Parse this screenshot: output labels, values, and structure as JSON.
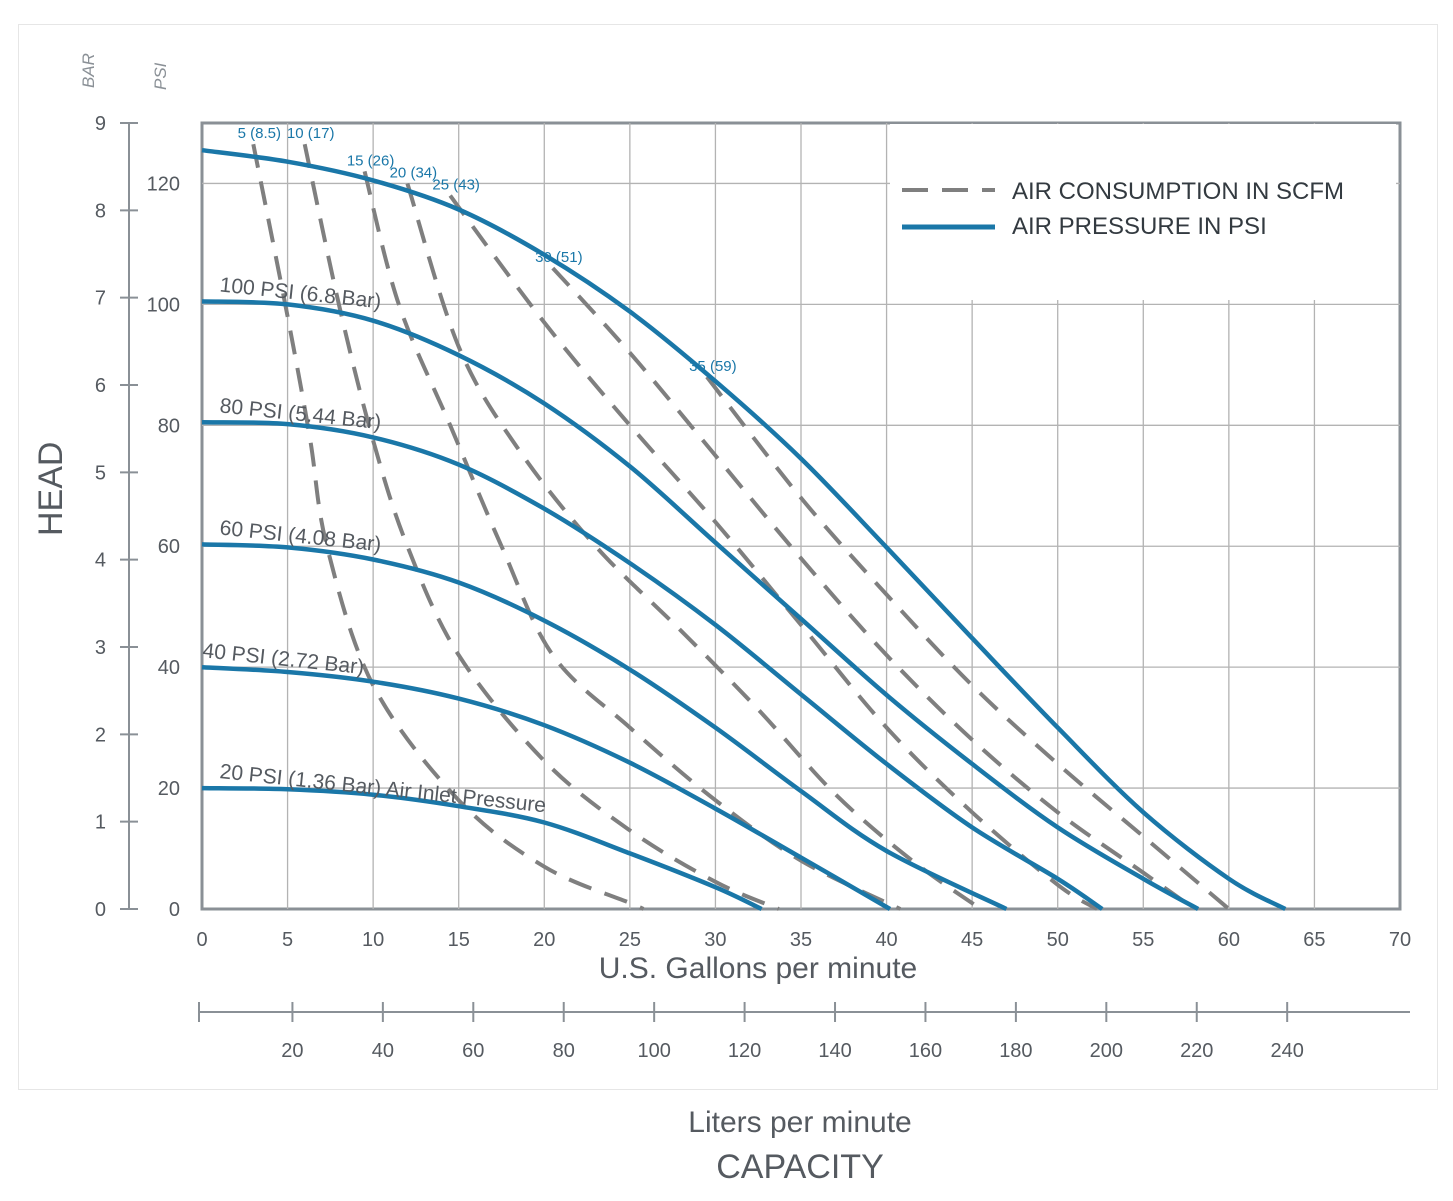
{
  "chart_data": {
    "type": "line",
    "title": "",
    "colors": {
      "pressure": "#1a77a8",
      "consumption": "#7f7f7f",
      "axis": "#8a9096",
      "grid": "#b3b3b3",
      "text": "#555a60"
    },
    "xlabel": "U.S. Gallons per minute",
    "xlabel2": "Liters per minute",
    "capacity_label": "CAPACITY",
    "ylabel": "HEAD",
    "yunit_bar": "BAR",
    "yunit_psi": "PSI",
    "xlim": [
      0,
      70
    ],
    "x_ticks": [
      0,
      5,
      10,
      15,
      20,
      25,
      30,
      35,
      40,
      45,
      50,
      55,
      60,
      65,
      70
    ],
    "ylim_psi": [
      0,
      130
    ],
    "ylim_bar": [
      0,
      9
    ],
    "y_ticks_psi": [
      0,
      20,
      40,
      60,
      80,
      100,
      120
    ],
    "y_ticks_bar": [
      0,
      1,
      2,
      3,
      4,
      5,
      6,
      7,
      8,
      9
    ],
    "lpm_ticks": [
      20,
      40,
      60,
      80,
      100,
      120,
      140,
      160,
      180,
      200,
      220,
      240
    ],
    "legend": {
      "position": "top-right",
      "items": [
        {
          "label": "AIR CONSUMPTION IN SCFM",
          "style": "dashed"
        },
        {
          "label": "AIR PRESSURE IN PSI",
          "style": "solid"
        }
      ]
    },
    "pressure_series": [
      {
        "name": "20 PSI (1.36 Bar) Air Inlet Pressure",
        "label_gpm": 1,
        "points": [
          [
            0,
            20
          ],
          [
            5,
            19.8
          ],
          [
            10,
            18.9
          ],
          [
            15,
            17
          ],
          [
            20,
            14.3
          ],
          [
            25,
            9.2
          ],
          [
            30,
            3.6
          ],
          [
            32.7,
            0
          ]
        ]
      },
      {
        "name": "40 PSI (2.72 Bar)",
        "label_gpm": 0,
        "points": [
          [
            0,
            40
          ],
          [
            5,
            39.2
          ],
          [
            10,
            37.6
          ],
          [
            15,
            34.8
          ],
          [
            20,
            30.4
          ],
          [
            25,
            24.2
          ],
          [
            30,
            16.6
          ],
          [
            35,
            8.5
          ],
          [
            40.2,
            0
          ]
        ]
      },
      {
        "name": "60 PSI (4.08 Bar)",
        "label_gpm": 1,
        "points": [
          [
            0,
            60.3
          ],
          [
            5,
            59.8
          ],
          [
            10,
            57.8
          ],
          [
            15,
            54
          ],
          [
            20,
            47.7
          ],
          [
            25,
            39.6
          ],
          [
            30,
            30
          ],
          [
            35,
            19.5
          ],
          [
            40,
            9.6
          ],
          [
            47,
            0
          ]
        ]
      },
      {
        "name": "80 PSI (5.44 Bar)",
        "label_gpm": 1,
        "points": [
          [
            0,
            80.5
          ],
          [
            5,
            80.2
          ],
          [
            10,
            78
          ],
          [
            15,
            73.5
          ],
          [
            20,
            66.2
          ],
          [
            25,
            57.2
          ],
          [
            30,
            47
          ],
          [
            35,
            35.5
          ],
          [
            40,
            24
          ],
          [
            45,
            13.5
          ],
          [
            50,
            5
          ],
          [
            52.6,
            0
          ]
        ]
      },
      {
        "name": "100 PSI (6.8 Bar)",
        "label_gpm": 1,
        "points": [
          [
            0,
            100.5
          ],
          [
            5,
            100
          ],
          [
            10,
            97.3
          ],
          [
            15,
            91.6
          ],
          [
            20,
            83.6
          ],
          [
            25,
            73.2
          ],
          [
            30,
            60.6
          ],
          [
            35,
            48
          ],
          [
            40,
            35.4
          ],
          [
            45,
            24
          ],
          [
            50,
            13.5
          ],
          [
            55,
            5
          ],
          [
            58.2,
            0
          ]
        ]
      },
      {
        "name": "",
        "label_gpm": 0,
        "points": [
          [
            0,
            125.5
          ],
          [
            5,
            123.6
          ],
          [
            10,
            120.5
          ],
          [
            15,
            115.7
          ],
          [
            20,
            108.2
          ],
          [
            25,
            98.8
          ],
          [
            30,
            87.3
          ],
          [
            35,
            74.5
          ],
          [
            40,
            59.8
          ],
          [
            45,
            44.8
          ],
          [
            50,
            30
          ],
          [
            55,
            16
          ],
          [
            60,
            5
          ],
          [
            63.3,
            0
          ]
        ]
      }
    ],
    "consumption_series": [
      {
        "name": "5 (8.5)",
        "points": [
          [
            3,
            126.5
          ],
          [
            5,
            98
          ],
          [
            6.3,
            78
          ],
          [
            7.3,
            60
          ],
          [
            10,
            37
          ],
          [
            15,
            18
          ],
          [
            20,
            7
          ],
          [
            25,
            1
          ],
          [
            25.8,
            0
          ]
        ]
      },
      {
        "name": "10 (17)",
        "points": [
          [
            6,
            126.5
          ],
          [
            8,
            100
          ],
          [
            10,
            77.5
          ],
          [
            12,
            60
          ],
          [
            15,
            42
          ],
          [
            20,
            24.5
          ],
          [
            25,
            13
          ],
          [
            30,
            4.5
          ],
          [
            33.7,
            0
          ]
        ]
      },
      {
        "name": "15 (26)",
        "points": [
          [
            9.5,
            122
          ],
          [
            11.5,
            100
          ],
          [
            14.5,
            80
          ],
          [
            17.5,
            60
          ],
          [
            20.5,
            42
          ],
          [
            25,
            30
          ],
          [
            30,
            18
          ],
          [
            35,
            8
          ],
          [
            40.8,
            0
          ]
        ]
      },
      {
        "name": "20 (34)",
        "points": [
          [
            12,
            120
          ],
          [
            15,
            93
          ],
          [
            18.5,
            76
          ],
          [
            23,
            60
          ],
          [
            28,
            46
          ],
          [
            32.5,
            33
          ],
          [
            37,
            19
          ],
          [
            41.5,
            8
          ],
          [
            45.5,
            0
          ]
        ]
      },
      {
        "name": "25 (43)",
        "points": [
          [
            14.5,
            118
          ],
          [
            20,
            97
          ],
          [
            25,
            80
          ],
          [
            30,
            64
          ],
          [
            35,
            47
          ],
          [
            40,
            30
          ],
          [
            45,
            16
          ],
          [
            50,
            4
          ],
          [
            52.3,
            0
          ]
        ]
      },
      {
        "name": "30 (51)",
        "points": [
          [
            20.5,
            106
          ],
          [
            25,
            92
          ],
          [
            30,
            75
          ],
          [
            35,
            58
          ],
          [
            40,
            42
          ],
          [
            45,
            28
          ],
          [
            50,
            16
          ],
          [
            55,
            6
          ],
          [
            58,
            0
          ]
        ]
      },
      {
        "name": "35 (59)",
        "points": [
          [
            29.5,
            88
          ],
          [
            35,
            68
          ],
          [
            40,
            52
          ],
          [
            45,
            37
          ],
          [
            50,
            24
          ],
          [
            55,
            12
          ],
          [
            60,
            0
          ]
        ]
      }
    ]
  }
}
